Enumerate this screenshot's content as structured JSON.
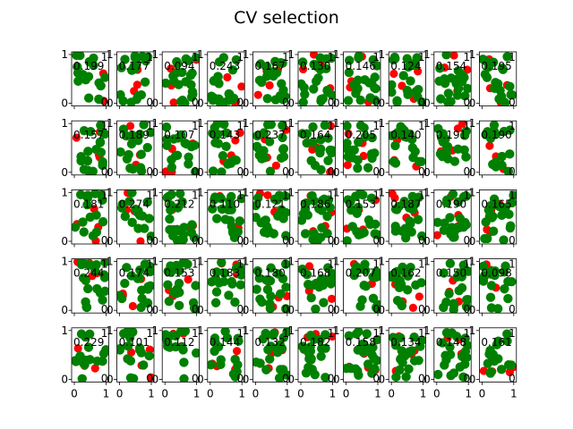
{
  "chart_data": {
    "type": "scatter",
    "title": "CV selection",
    "rows": 5,
    "cols": 10,
    "xlim": [
      0,
      1
    ],
    "ylim": [
      0,
      1
    ],
    "xticks": [
      "0",
      "1"
    ],
    "yticks": [
      "0",
      "1"
    ],
    "corner_labels": [
      "1",
      "0"
    ],
    "colors": {
      "green": "#008000",
      "red": "#ff0000"
    },
    "panel_values": [
      [
        "0.199",
        "0.177",
        "0.094",
        "0.243",
        "0.167",
        "0.130",
        "0.146",
        "0.124",
        "0.154",
        "0.195"
      ],
      [
        "0.157",
        "0.189",
        "0.107",
        "0.143",
        "0.237",
        "0.164",
        "0.205",
        "0.140",
        "0.191",
        "0.190"
      ],
      [
        "0.181",
        "0.274",
        "0.212",
        "0.110",
        "0.121",
        "0.186",
        "0.153",
        "0.187",
        "0.190",
        "0.165"
      ],
      [
        "0.244",
        "0.174",
        "0.153",
        "0.183",
        "0.180",
        "0.168",
        "0.207",
        "0.162",
        "0.150",
        "0.098"
      ],
      [
        "0.229",
        "0.101",
        "0.112",
        "0.144",
        "0.132",
        "0.182",
        "0.158",
        "0.134",
        "0.148",
        "0.161"
      ]
    ]
  }
}
